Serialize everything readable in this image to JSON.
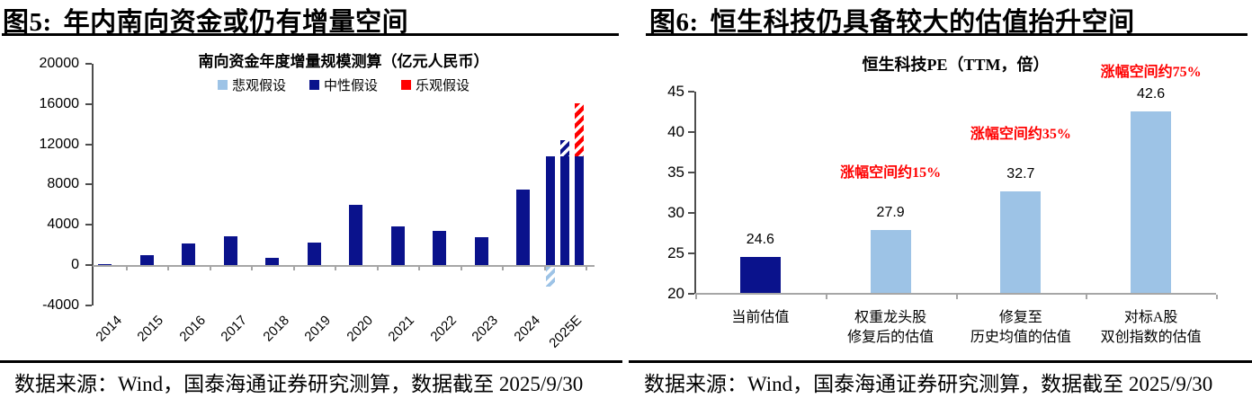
{
  "panels": [
    {
      "header_prefix": "图5:",
      "header_title": "年内南向资金或仍有增量空间",
      "source": "数据来源：Wind，国泰海通证券研究测算，数据截至 2025/9/30"
    },
    {
      "header_prefix": "图6:",
      "header_title": "恒生科技仍具备较大的估值抬升空间",
      "source": "数据来源：Wind，国泰海通证券研究测算，数据截至 2025/9/30"
    }
  ],
  "colors": {
    "navy": "#0a128c",
    "light_blue": "#9dc3e6",
    "red": "#ff0000",
    "axis_gray": "#a6a6a6",
    "axis_dark": "#4d4d4d"
  },
  "chart_data": [
    {
      "type": "bar",
      "title": "南向资金年度增量规模测算（亿元人民币）",
      "unit": "亿元人民币",
      "ylim": [
        -4000,
        20000
      ],
      "yticks": [
        20000,
        16000,
        12000,
        8000,
        4000,
        0,
        -4000
      ],
      "grid": false,
      "legend_position": "top",
      "legend": [
        {
          "label": "悲观假设",
          "color": "#9dc3e6"
        },
        {
          "label": "中性假设",
          "color": "#0a128c"
        },
        {
          "label": "乐观假设",
          "color": "#ff0000"
        }
      ],
      "categories": [
        "2014",
        "2015",
        "2016",
        "2017",
        "2018",
        "2019",
        "2020",
        "2021",
        "2022",
        "2023",
        "2024",
        "2025E"
      ],
      "values_2014_2024": [
        100,
        1000,
        2100,
        2900,
        700,
        2200,
        6000,
        3800,
        3400,
        2800,
        7500
      ],
      "bar_color_2014_2024": "#0a128c",
      "bars_2025E": {
        "solid_value": 10800,
        "solid_color": "#0a128c",
        "scenarios": [
          {
            "name": "悲观假设",
            "hatch_from": 0,
            "hatch_to": -2000,
            "hatch": "blue"
          },
          {
            "name": "中性假设",
            "hatch_from": 10800,
            "hatch_to": 12400,
            "hatch": "navy"
          },
          {
            "name": "乐观假设",
            "hatch_from": 10800,
            "hatch_to": 16100,
            "hatch": "red"
          }
        ]
      }
    },
    {
      "type": "bar",
      "title": "恒生科技PE（TTM，倍）",
      "ylim": [
        20,
        45
      ],
      "yticks": [
        45,
        40,
        35,
        30,
        25,
        20
      ],
      "grid": false,
      "categories": [
        [
          "当前估值"
        ],
        [
          "权重龙头股",
          "修复后的估值"
        ],
        [
          "修复至",
          "历史均值的估值"
        ],
        [
          "对标A股",
          "双创指数的估值"
        ]
      ],
      "values": [
        24.6,
        27.9,
        32.7,
        42.6
      ],
      "data_labels": [
        "24.6",
        "27.9",
        "32.7",
        "42.6"
      ],
      "bar_colors": [
        "#0a128c",
        "#9dc3e6",
        "#9dc3e6",
        "#9dc3e6"
      ],
      "annotations": [
        {
          "bar_index": 1,
          "text": "涨幅空间约15%",
          "color": "#ff0000"
        },
        {
          "bar_index": 2,
          "text": "涨幅空间约35%",
          "color": "#ff0000"
        },
        {
          "bar_index": 3,
          "text": "涨幅空间约75%",
          "color": "#ff0000"
        }
      ]
    }
  ]
}
